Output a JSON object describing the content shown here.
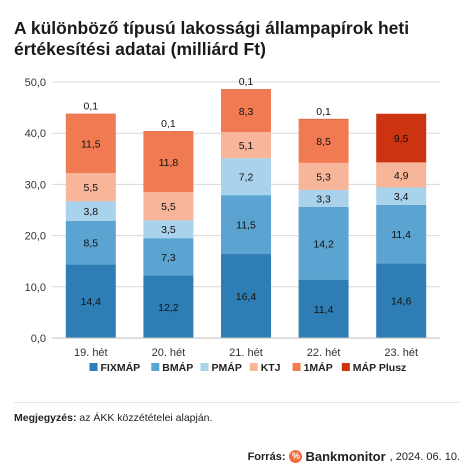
{
  "title_line1": "A különböző típusú lakossági állampapírok heti",
  "title_line2": "értékesítési adatai (milliárd Ft)",
  "note_label": "Megjegyzés:",
  "note_text": "az ÁKK közzétételei alapján.",
  "source_label": "Forrás:",
  "source_brand": "Bankmonitor",
  "source_date": ", 2024. 06. 10.",
  "chart_data": {
    "type": "bar",
    "stacked": true,
    "categories": [
      "19. hét",
      "20. hét",
      "21. hét",
      "22. hét",
      "23. hét"
    ],
    "series": [
      {
        "name": "FIXMÁP",
        "color": "#2e7eb5",
        "values": [
          14.4,
          12.2,
          16.4,
          11.4,
          14.6
        ],
        "labels": [
          "14,4",
          "12,2",
          "16,4",
          "11,4",
          "14,6"
        ]
      },
      {
        "name": "BMÁP",
        "color": "#5ba3d0",
        "values": [
          8.5,
          7.3,
          11.5,
          14.2,
          11.4
        ],
        "labels": [
          "8,5",
          "7,3",
          "11,5",
          "14,2",
          "11,4"
        ]
      },
      {
        "name": "PMÁP",
        "color": "#a9d2ec",
        "values": [
          3.8,
          3.5,
          7.2,
          3.3,
          3.4
        ],
        "labels": [
          "3,8",
          "3,5",
          "7,2",
          "3,3",
          "3,4"
        ]
      },
      {
        "name": "KTJ",
        "color": "#f7b59a",
        "values": [
          5.5,
          5.5,
          5.1,
          5.3,
          4.9
        ],
        "labels": [
          "5,5",
          "5,5",
          "5,1",
          "5,3",
          "4,9"
        ]
      },
      {
        "name": "1MÁP",
        "color": "#f07b52",
        "values": [
          11.5,
          11.8,
          8.3,
          8.5,
          0
        ],
        "labels": [
          "11,5",
          "11,8",
          "8,3",
          "8,5",
          ""
        ]
      },
      {
        "name": "MÁP Plusz",
        "color": "#cc3311",
        "values": [
          0.1,
          0.1,
          0.1,
          0.1,
          9.5
        ],
        "labels": [
          "0,1",
          "0,1",
          "0,1",
          "0,1",
          "9,5"
        ]
      }
    ],
    "ylim": [
      0,
      50
    ],
    "yticks": [
      "0,0",
      "10,0",
      "20,0",
      "30,0",
      "40,0",
      "50,0"
    ],
    "grid": true,
    "legend": "bottom"
  }
}
